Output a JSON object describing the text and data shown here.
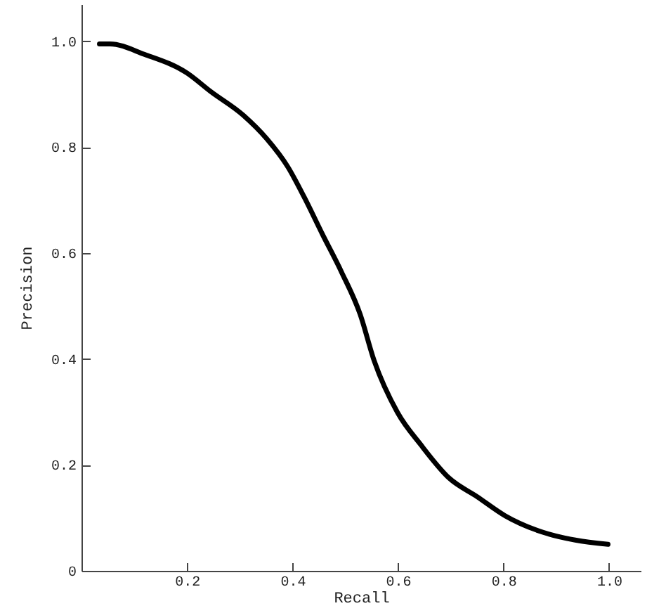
{
  "chart_data": {
    "type": "line",
    "xlabel": "Recall",
    "ylabel": "Precision",
    "x": [
      0.034,
      0.054,
      0.12,
      0.2,
      0.245,
      0.307,
      0.351,
      0.391,
      0.422,
      0.457,
      0.493,
      0.528,
      0.555,
      0.599,
      0.644,
      0.697,
      0.75,
      0.803,
      0.874,
      0.936,
      0.998
    ],
    "series": [
      {
        "color": "#000000",
        "values": [
          0.995,
          0.995,
          0.975,
          0.94,
          0.905,
          0.86,
          0.816,
          0.763,
          0.706,
          0.635,
          0.564,
          0.485,
          0.396,
          0.299,
          0.237,
          0.175,
          0.14,
          0.104,
          0.073,
          0.058,
          0.05
        ]
      }
    ],
    "xlim": [
      0,
      1.06
    ],
    "ylim": [
      0,
      1.07
    ],
    "xticks": [
      {
        "value": 0.2,
        "label": "0.2"
      },
      {
        "value": 0.4,
        "label": "0.4"
      },
      {
        "value": 0.6,
        "label": "0.6"
      },
      {
        "value": 0.8,
        "label": "0.8"
      },
      {
        "value": 1,
        "label": "1.0"
      }
    ],
    "yticks": [
      {
        "value": 0,
        "label": "0"
      },
      {
        "value": 0.2,
        "label": "0.2"
      },
      {
        "value": 0.4,
        "label": "0.4"
      },
      {
        "value": 0.6,
        "label": "0.6"
      },
      {
        "value": 0.8,
        "label": "0.8"
      },
      {
        "value": 1,
        "label": "1.0"
      }
    ],
    "grid": false,
    "marker": "none",
    "line_style": "solid"
  }
}
